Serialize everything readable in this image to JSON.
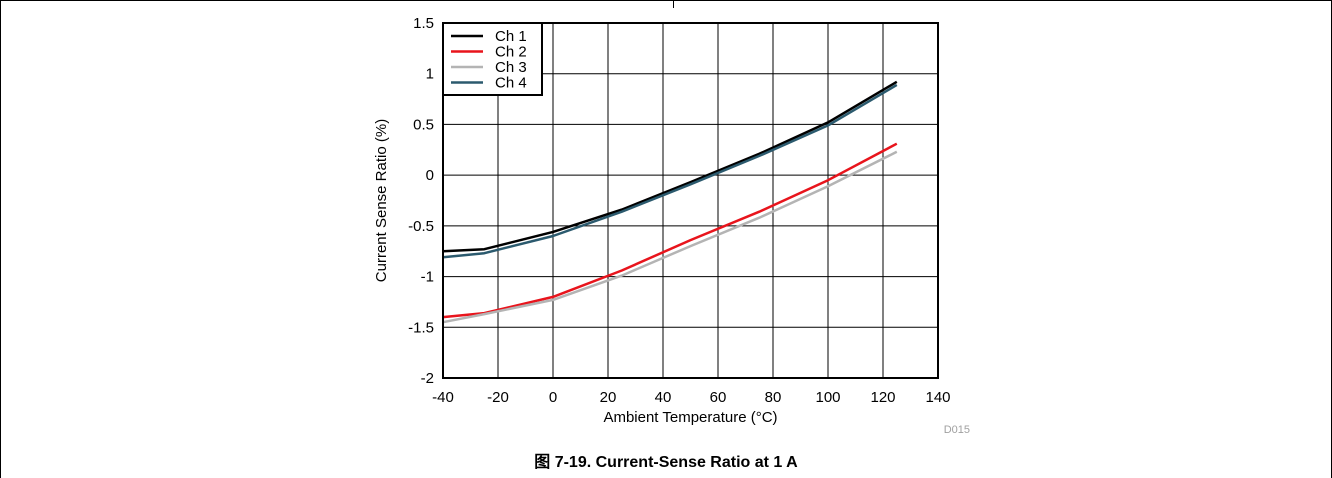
{
  "caption": "图 7-19. Current-Sense Ratio at 1 A",
  "figure_code": "D015",
  "chart_data": {
    "type": "line",
    "xlabel": "Ambient Temperature (°C)",
    "ylabel": "Current Sense Ratio (%)",
    "xlim": [
      -40,
      140
    ],
    "ylim": [
      -2,
      1.5
    ],
    "xticks": [
      -40,
      -20,
      0,
      20,
      40,
      60,
      80,
      100,
      120,
      140
    ],
    "yticks": [
      -2,
      -1.5,
      -1,
      -0.5,
      0,
      0.5,
      1,
      1.5
    ],
    "xtick_labels": [
      "-40",
      "-20",
      "0",
      "20",
      "40",
      "60",
      "80",
      "100",
      "120",
      "140"
    ],
    "ytick_labels": [
      "-2",
      "-1.5",
      "-1",
      "-0.5",
      "0",
      "0.5",
      "1",
      "1.5"
    ],
    "grid": true,
    "legend_position": "top-left",
    "series": [
      {
        "name": "Ch 1",
        "color": "#000000",
        "x": [
          -40,
          -25,
          0,
          25,
          50,
          75,
          100,
          125
        ],
        "y": [
          -0.75,
          -0.73,
          -0.56,
          -0.34,
          -0.07,
          0.21,
          0.52,
          0.92
        ]
      },
      {
        "name": "Ch 2",
        "color": "#e8141c",
        "x": [
          -40,
          -25,
          0,
          25,
          50,
          75,
          100,
          125
        ],
        "y": [
          -1.4,
          -1.36,
          -1.2,
          -0.94,
          -0.64,
          -0.36,
          -0.05,
          0.31
        ]
      },
      {
        "name": "Ch 3",
        "color": "#b4b4b4",
        "x": [
          -40,
          -25,
          0,
          25,
          50,
          75,
          100,
          125
        ],
        "y": [
          -1.45,
          -1.37,
          -1.23,
          -0.99,
          -0.7,
          -0.42,
          -0.11,
          0.23
        ]
      },
      {
        "name": "Ch 4",
        "color": "#2b5a6e",
        "x": [
          -40,
          -25,
          0,
          25,
          50,
          75,
          100,
          125
        ],
        "y": [
          -0.81,
          -0.77,
          -0.6,
          -0.36,
          -0.09,
          0.19,
          0.49,
          0.89
        ]
      }
    ]
  }
}
